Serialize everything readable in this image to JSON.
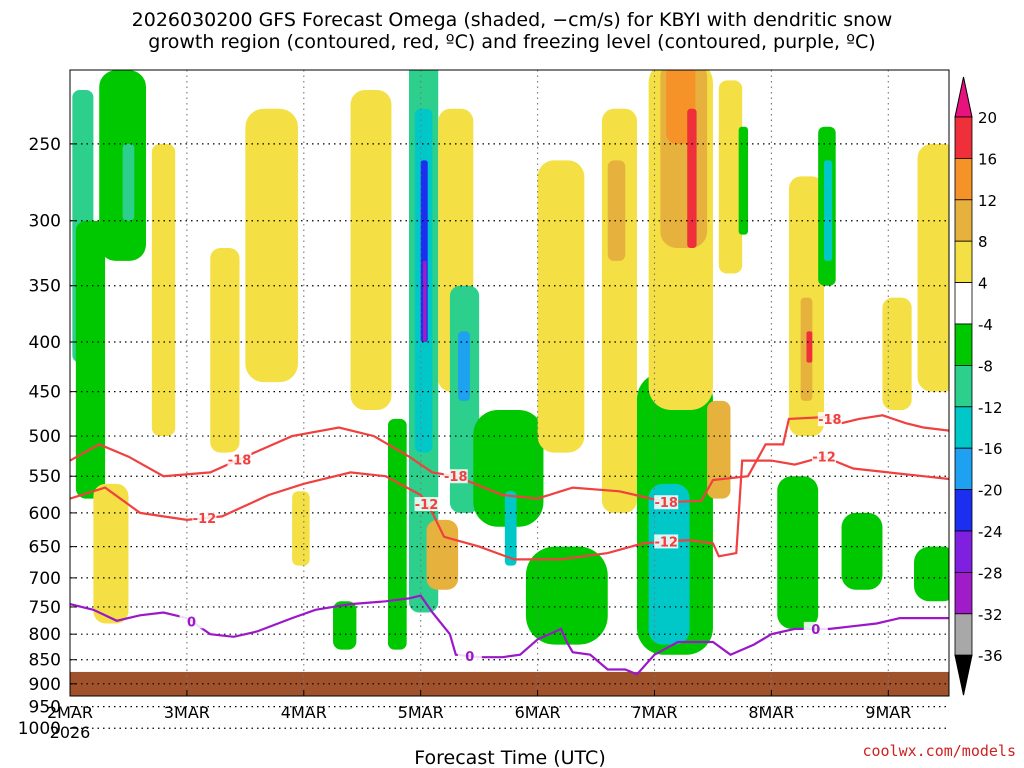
{
  "title_lines": [
    "2026030200 GFS Forecast Omega (shaded, −cm/s) for KBYI with dendritic snow",
    "growth region (contoured, red, ºC) and freezing level (contoured, purple, ºC)"
  ],
  "credit": "coolwx.com/models",
  "chart_data": {
    "type": "heatmap",
    "xlabel": "Forecast Time (UTC)",
    "ylabel": "",
    "x_ticks": [
      {
        "label": "2MAR",
        "sub": "2026",
        "day": 0
      },
      {
        "label": "3MAR",
        "sub": "",
        "day": 1
      },
      {
        "label": "4MAR",
        "sub": "",
        "day": 2
      },
      {
        "label": "5MAR",
        "sub": "",
        "day": 3
      },
      {
        "label": "6MAR",
        "sub": "",
        "day": 4
      },
      {
        "label": "7MAR",
        "sub": "",
        "day": 5
      },
      {
        "label": "8MAR",
        "sub": "",
        "day": 6
      },
      {
        "label": "9MAR",
        "sub": "",
        "day": 7
      }
    ],
    "xlim_days": [
      0,
      7.6
    ],
    "y_scale": "log",
    "y_reversed": true,
    "ylim_hPa": [
      1050,
      200
    ],
    "y_ticks": [
      250,
      300,
      350,
      400,
      450,
      500,
      550,
      600,
      650,
      700,
      750,
      800,
      850,
      900,
      950,
      1000
    ],
    "grid": true,
    "surface_hPa": 875,
    "colorbar": {
      "levels": [
        20,
        16,
        12,
        8,
        4,
        -4,
        -8,
        -12,
        -16,
        -20,
        -24,
        -28,
        -32,
        -36
      ],
      "colors": [
        "#ef2f3a",
        "#f59328",
        "#e7b13d",
        "#f4df45",
        "#ffffff",
        "#00c800",
        "#2ccf8b",
        "#00c8c8",
        "#1ea1f0",
        "#1c2ef0",
        "#7f1fe0",
        "#a01cc8",
        "#a8a8a8"
      ],
      "top_cap": "#e8127e",
      "bottom_cap": "#000000"
    },
    "shading": [
      {
        "v": -10,
        "day": [
          0.02,
          0.2
        ],
        "p": [
          220,
          420
        ]
      },
      {
        "v": -6,
        "day": [
          0.05,
          0.3
        ],
        "p": [
          300,
          580
        ]
      },
      {
        "v": -6,
        "day": [
          0.25,
          0.65
        ],
        "p": [
          210,
          330
        ]
      },
      {
        "v": -10,
        "day": [
          0.45,
          0.55
        ],
        "p": [
          250,
          300
        ]
      },
      {
        "v": 5,
        "day": [
          0.2,
          0.5
        ],
        "p": [
          560,
          780
        ]
      },
      {
        "v": 5,
        "day": [
          0.7,
          0.9
        ],
        "p": [
          250,
          500
        ]
      },
      {
        "v": 5,
        "day": [
          1.2,
          1.45
        ],
        "p": [
          320,
          520
        ]
      },
      {
        "v": 9,
        "day": [
          1.55,
          1.62
        ],
        "p": [
          340,
          420
        ]
      },
      {
        "v": 5,
        "day": [
          1.5,
          1.95
        ],
        "p": [
          230,
          440
        ]
      },
      {
        "v": 5,
        "day": [
          1.9,
          2.05
        ],
        "p": [
          570,
          680
        ]
      },
      {
        "v": 5,
        "day": [
          2.4,
          2.75
        ],
        "p": [
          220,
          470
        ]
      },
      {
        "v": -6,
        "day": [
          2.25,
          2.45
        ],
        "p": [
          740,
          830
        ]
      },
      {
        "v": -6,
        "day": [
          2.72,
          2.88
        ],
        "p": [
          480,
          830
        ]
      },
      {
        "v": -10,
        "day": [
          2.9,
          3.15
        ],
        "p": [
          200,
          760
        ]
      },
      {
        "v": -14,
        "day": [
          2.95,
          3.1
        ],
        "p": [
          230,
          520
        ]
      },
      {
        "v": -22,
        "day": [
          3.0,
          3.06
        ],
        "p": [
          260,
          400
        ]
      },
      {
        "v": -28,
        "day": [
          3.02,
          3.05
        ],
        "p": [
          330,
          400
        ]
      },
      {
        "v": 9,
        "day": [
          3.05,
          3.32
        ],
        "p": [
          610,
          720
        ]
      },
      {
        "v": 5,
        "day": [
          3.15,
          3.45
        ],
        "p": [
          230,
          450
        ]
      },
      {
        "v": -10,
        "day": [
          3.25,
          3.5
        ],
        "p": [
          350,
          600
        ]
      },
      {
        "v": -18,
        "day": [
          3.32,
          3.42
        ],
        "p": [
          390,
          460
        ]
      },
      {
        "v": -6,
        "day": [
          3.45,
          4.05
        ],
        "p": [
          470,
          620
        ]
      },
      {
        "v": -14,
        "day": [
          3.72,
          3.82
        ],
        "p": [
          570,
          680
        ]
      },
      {
        "v": -6,
        "day": [
          3.9,
          4.6
        ],
        "p": [
          650,
          820
        ]
      },
      {
        "v": 5,
        "day": [
          4.0,
          4.4
        ],
        "p": [
          260,
          520
        ]
      },
      {
        "v": 5,
        "day": [
          4.55,
          4.85
        ],
        "p": [
          230,
          600
        ]
      },
      {
        "v": 9,
        "day": [
          4.6,
          4.75
        ],
        "p": [
          260,
          330
        ]
      },
      {
        "v": -6,
        "day": [
          4.85,
          5.5
        ],
        "p": [
          430,
          840
        ]
      },
      {
        "v": -14,
        "day": [
          4.95,
          5.3
        ],
        "p": [
          560,
          820
        ]
      },
      {
        "v": 5,
        "day": [
          4.95,
          5.5
        ],
        "p": [
          205,
          470
        ]
      },
      {
        "v": 9,
        "day": [
          5.05,
          5.45
        ],
        "p": [
          205,
          320
        ]
      },
      {
        "v": 13,
        "day": [
          5.1,
          5.35
        ],
        "p": [
          205,
          250
        ]
      },
      {
        "v": 18,
        "day": [
          5.28,
          5.36
        ],
        "p": [
          230,
          320
        ]
      },
      {
        "v": 9,
        "day": [
          5.45,
          5.65
        ],
        "p": [
          460,
          580
        ]
      },
      {
        "v": 5,
        "day": [
          5.55,
          5.75
        ],
        "p": [
          215,
          340
        ]
      },
      {
        "v": -6,
        "day": [
          5.72,
          5.8
        ],
        "p": [
          240,
          310
        ]
      },
      {
        "v": 5,
        "day": [
          6.15,
          6.45
        ],
        "p": [
          270,
          500
        ]
      },
      {
        "v": 9,
        "day": [
          6.25,
          6.35
        ],
        "p": [
          360,
          460
        ]
      },
      {
        "v": 18,
        "day": [
          6.3,
          6.35
        ],
        "p": [
          390,
          420
        ]
      },
      {
        "v": -6,
        "day": [
          6.05,
          6.4
        ],
        "p": [
          550,
          790
        ]
      },
      {
        "v": -6,
        "day": [
          6.4,
          6.55
        ],
        "p": [
          240,
          350
        ]
      },
      {
        "v": -14,
        "day": [
          6.45,
          6.52
        ],
        "p": [
          260,
          330
        ]
      },
      {
        "v": -6,
        "day": [
          6.6,
          6.95
        ],
        "p": [
          600,
          720
        ]
      },
      {
        "v": -6,
        "day": [
          7.22,
          7.6
        ],
        "p": [
          650,
          740
        ]
      },
      {
        "v": 5,
        "day": [
          6.95,
          7.2
        ],
        "p": [
          360,
          470
        ]
      },
      {
        "v": 5,
        "day": [
          7.25,
          7.6
        ],
        "p": [
          250,
          450
        ]
      }
    ],
    "contours": [
      {
        "kind": "dendritic",
        "label": "-18",
        "color": "#f04040",
        "points": [
          [
            0,
            530
          ],
          [
            0.25,
            510
          ],
          [
            0.5,
            525
          ],
          [
            0.8,
            550
          ],
          [
            1.2,
            545
          ],
          [
            1.5,
            525
          ],
          [
            1.9,
            500
          ],
          [
            2.3,
            490
          ],
          [
            2.6,
            500
          ],
          [
            2.9,
            525
          ],
          [
            3.1,
            545
          ],
          [
            3.3,
            550
          ],
          [
            3.7,
            575
          ],
          [
            4.0,
            580
          ],
          [
            4.3,
            565
          ],
          [
            4.7,
            570
          ],
          [
            5.1,
            585
          ],
          [
            5.4,
            583
          ],
          [
            5.5,
            555
          ],
          [
            5.8,
            550
          ],
          [
            5.95,
            510
          ],
          [
            6.1,
            510
          ],
          [
            6.15,
            480
          ],
          [
            6.45,
            478
          ],
          [
            6.6,
            485
          ],
          [
            6.75,
            480
          ],
          [
            6.95,
            476
          ],
          [
            7.15,
            485
          ],
          [
            7.3,
            490
          ],
          [
            7.6,
            495
          ]
        ],
        "label_days": [
          1.45,
          3.3,
          5.1,
          6.5
        ]
      },
      {
        "kind": "dendritic",
        "label": "-12",
        "color": "#f04040",
        "points": [
          [
            0,
            580
          ],
          [
            0.3,
            565
          ],
          [
            0.6,
            600
          ],
          [
            1.0,
            610
          ],
          [
            1.3,
            605
          ],
          [
            1.7,
            575
          ],
          [
            2.0,
            560
          ],
          [
            2.4,
            545
          ],
          [
            2.7,
            550
          ],
          [
            3.0,
            575
          ],
          [
            3.1,
            600
          ],
          [
            3.2,
            635
          ],
          [
            3.5,
            650
          ],
          [
            3.8,
            670
          ],
          [
            4.2,
            670
          ],
          [
            4.6,
            660
          ],
          [
            4.9,
            645
          ],
          [
            5.1,
            642
          ],
          [
            5.3,
            640
          ],
          [
            5.5,
            645
          ],
          [
            5.55,
            665
          ],
          [
            5.7,
            660
          ],
          [
            5.75,
            530
          ],
          [
            6.0,
            530
          ],
          [
            6.2,
            535
          ],
          [
            6.45,
            525
          ],
          [
            6.7,
            540
          ],
          [
            7.0,
            545
          ],
          [
            7.3,
            550
          ],
          [
            7.6,
            555
          ]
        ],
        "label_days": [
          1.15,
          3.05,
          5.1,
          6.45
        ]
      },
      {
        "kind": "freezing",
        "label": "0",
        "color": "#9b18c8",
        "points": [
          [
            0,
            745
          ],
          [
            0.2,
            755
          ],
          [
            0.4,
            775
          ],
          [
            0.6,
            765
          ],
          [
            0.8,
            760
          ],
          [
            1.0,
            770
          ],
          [
            1.2,
            800
          ],
          [
            1.4,
            805
          ],
          [
            1.6,
            795
          ],
          [
            1.9,
            770
          ],
          [
            2.1,
            755
          ],
          [
            2.4,
            745
          ],
          [
            2.7,
            740
          ],
          [
            2.9,
            735
          ],
          [
            3.0,
            730
          ],
          [
            3.1,
            760
          ],
          [
            3.25,
            800
          ],
          [
            3.3,
            840
          ],
          [
            3.5,
            845
          ],
          [
            3.7,
            845
          ],
          [
            3.85,
            840
          ],
          [
            4.0,
            810
          ],
          [
            4.1,
            800
          ],
          [
            4.2,
            790
          ],
          [
            4.25,
            815
          ],
          [
            4.3,
            835
          ],
          [
            4.45,
            840
          ],
          [
            4.6,
            870
          ],
          [
            4.75,
            870
          ],
          [
            4.85,
            880
          ],
          [
            5.0,
            840
          ],
          [
            5.2,
            815
          ],
          [
            5.5,
            815
          ],
          [
            5.65,
            840
          ],
          [
            5.85,
            820
          ],
          [
            6.0,
            800
          ],
          [
            6.2,
            790
          ],
          [
            6.5,
            790
          ],
          [
            6.7,
            785
          ],
          [
            6.9,
            780
          ],
          [
            7.1,
            770
          ],
          [
            7.6,
            770
          ]
        ],
        "label_days": [
          1.04,
          3.42,
          6.38
        ]
      }
    ]
  }
}
